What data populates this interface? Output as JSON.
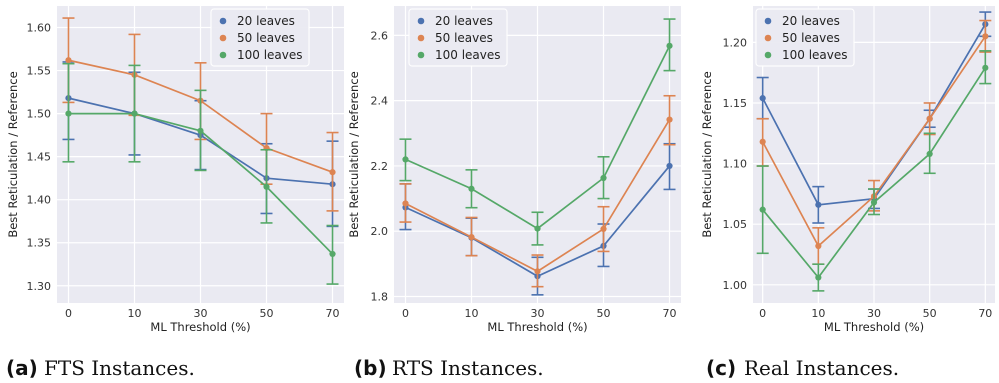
{
  "chart_data": [
    {
      "type": "line",
      "caption_label": "(a)",
      "caption_text": "FTS Instances.",
      "xlabel": "ML Threshold (%)",
      "ylabel": "Best Reticulation / Reference",
      "categories": [
        "0",
        "10",
        "30",
        "50",
        "70"
      ],
      "ylim": [
        1.28,
        1.625
      ],
      "yticks": [
        1.3,
        1.35,
        1.4,
        1.45,
        1.5,
        1.55,
        1.6
      ],
      "ytick_labels": [
        "1.30",
        "1.35",
        "1.40",
        "1.45",
        "1.50",
        "1.55",
        "1.60"
      ],
      "grid": true,
      "legend_position": "top-right",
      "series": [
        {
          "name": "20 leaves",
          "color": "#4c72b0",
          "values": [
            1.518,
            1.5,
            1.475,
            1.425,
            1.418
          ],
          "lower": [
            1.47,
            1.452,
            1.435,
            1.384,
            1.369
          ],
          "upper": [
            1.56,
            1.548,
            1.515,
            1.465,
            1.468
          ]
        },
        {
          "name": "50 leaves",
          "color": "#dd8452",
          "values": [
            1.562,
            1.545,
            1.515,
            1.46,
            1.432
          ],
          "lower": [
            1.513,
            1.498,
            1.47,
            1.418,
            1.387
          ],
          "upper": [
            1.611,
            1.592,
            1.559,
            1.5,
            1.478
          ]
        },
        {
          "name": "100 leaves",
          "color": "#55a868",
          "values": [
            1.5,
            1.5,
            1.48,
            1.415,
            1.337
          ],
          "lower": [
            1.444,
            1.444,
            1.434,
            1.373,
            1.302
          ],
          "upper": [
            1.558,
            1.556,
            1.527,
            1.458,
            1.37
          ]
        }
      ]
    },
    {
      "type": "line",
      "caption_label": "(b)",
      "caption_text": "RTS Instances.",
      "xlabel": "ML Threshold (%)",
      "ylabel": "Best Reticulation / Reference",
      "categories": [
        "0",
        "10",
        "30",
        "50",
        "70"
      ],
      "ylim": [
        1.78,
        2.69
      ],
      "yticks": [
        1.8,
        2.0,
        2.2,
        2.4,
        2.6
      ],
      "ytick_labels": [
        "1.8",
        "2.0",
        "2.2",
        "2.4",
        "2.6"
      ],
      "grid": true,
      "legend_position": "top-center",
      "series": [
        {
          "name": "20 leaves",
          "color": "#4c72b0",
          "values": [
            2.073,
            1.98,
            1.862,
            1.955,
            2.2
          ],
          "lower": [
            2.005,
            1.925,
            1.805,
            1.892,
            2.128
          ],
          "upper": [
            2.145,
            2.04,
            1.92,
            2.022,
            2.268
          ]
        },
        {
          "name": "50 leaves",
          "color": "#dd8452",
          "values": [
            2.085,
            1.982,
            1.877,
            2.007,
            2.342
          ],
          "lower": [
            2.028,
            1.925,
            1.83,
            1.938,
            2.265
          ],
          "upper": [
            2.145,
            2.042,
            1.927,
            2.075,
            2.415
          ]
        },
        {
          "name": "100 leaves",
          "color": "#55a868",
          "values": [
            2.22,
            2.13,
            2.008,
            2.163,
            2.568
          ],
          "lower": [
            2.155,
            2.072,
            1.958,
            2.1,
            2.492
          ],
          "upper": [
            2.282,
            2.188,
            2.058,
            2.228,
            2.65
          ]
        }
      ]
    },
    {
      "type": "line",
      "caption_label": "(c)",
      "caption_text": "Real Instances.",
      "xlabel": "ML Threshold (%)",
      "ylabel": "Best Reticulation / Reference",
      "categories": [
        "0",
        "10",
        "30",
        "50",
        "70"
      ],
      "ylim": [
        0.985,
        1.23
      ],
      "yticks": [
        1.0,
        1.05,
        1.1,
        1.15,
        1.2
      ],
      "ytick_labels": [
        "1.00",
        "1.05",
        "1.10",
        "1.15",
        "1.20"
      ],
      "grid": true,
      "legend_position": "top-left",
      "series": [
        {
          "name": "20 leaves",
          "color": "#4c72b0",
          "values": [
            1.154,
            1.066,
            1.071,
            1.137,
            1.215
          ],
          "lower": [
            1.137,
            1.051,
            1.063,
            1.13,
            1.205
          ],
          "upper": [
            1.171,
            1.081,
            1.079,
            1.144,
            1.225
          ]
        },
        {
          "name": "50 leaves",
          "color": "#dd8452",
          "values": [
            1.118,
            1.032,
            1.073,
            1.137,
            1.205
          ],
          "lower": [
            1.098,
            1.017,
            1.061,
            1.124,
            1.192
          ],
          "upper": [
            1.137,
            1.047,
            1.086,
            1.15,
            1.218
          ]
        },
        {
          "name": "100 leaves",
          "color": "#55a868",
          "values": [
            1.062,
            1.006,
            1.068,
            1.108,
            1.179
          ],
          "lower": [
            1.026,
            0.995,
            1.058,
            1.092,
            1.166
          ],
          "upper": [
            1.098,
            1.017,
            1.079,
            1.125,
            1.193
          ]
        }
      ]
    }
  ]
}
